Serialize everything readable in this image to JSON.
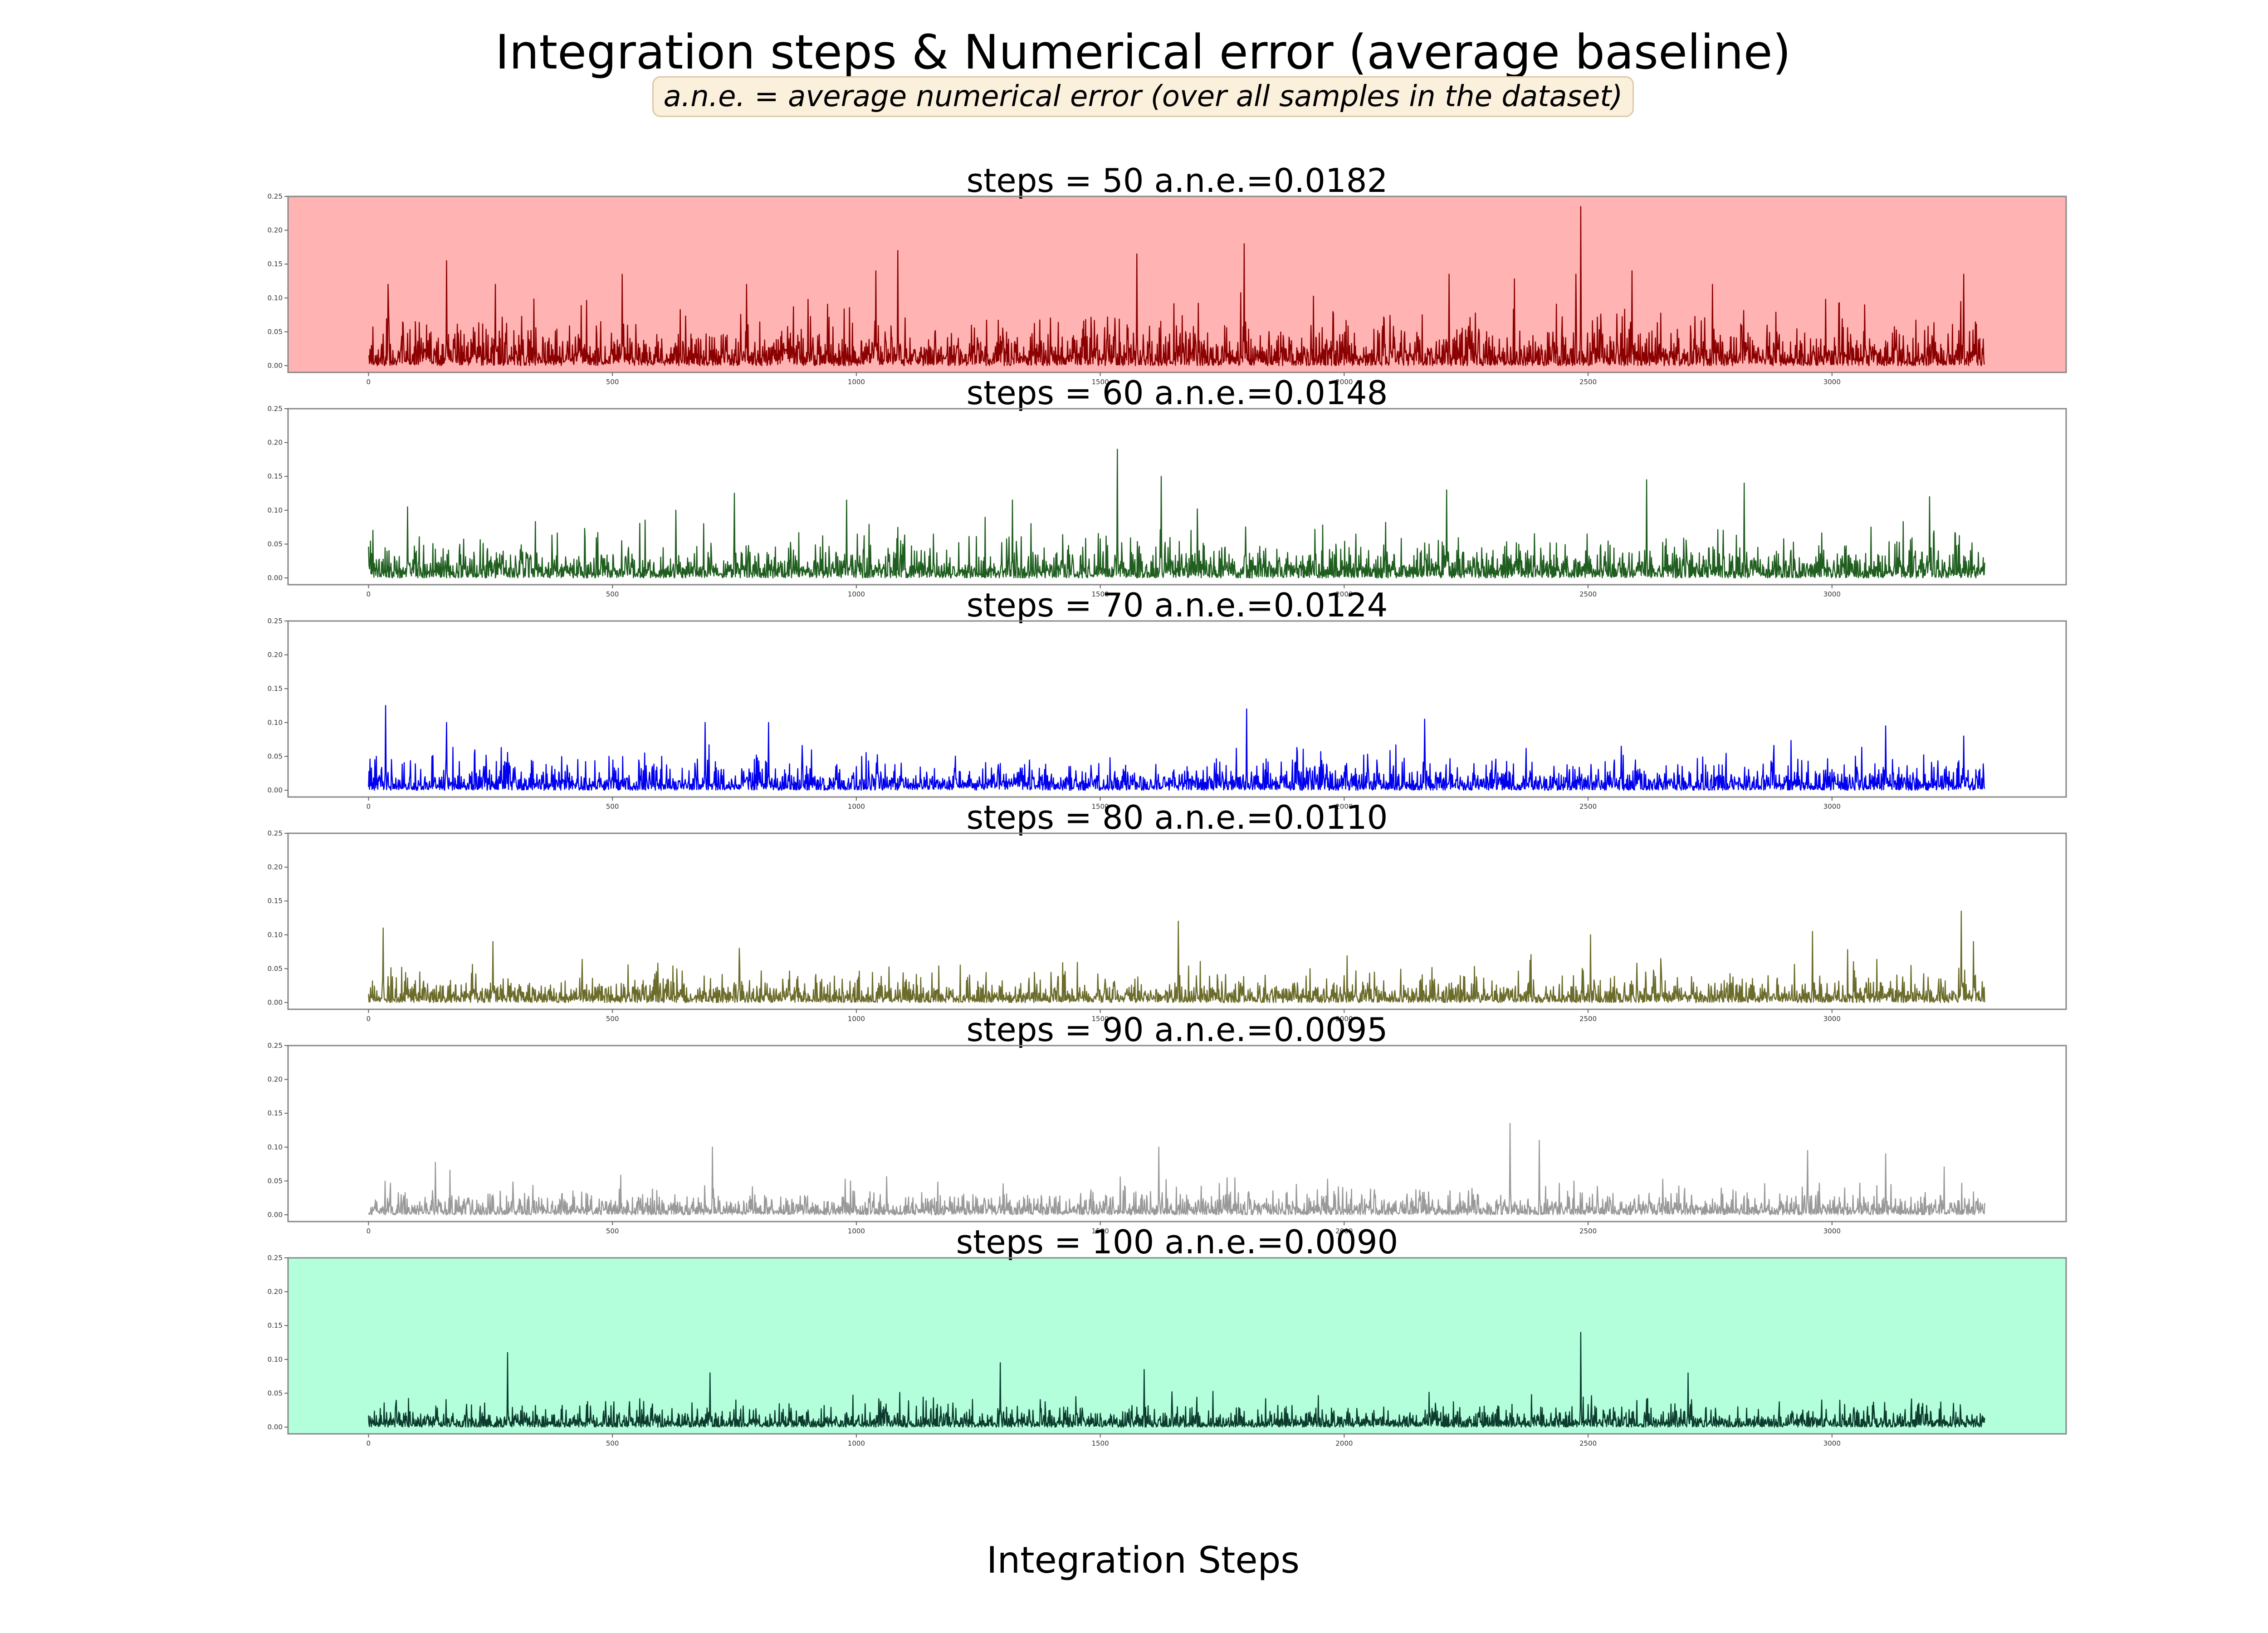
{
  "figure": {
    "title": "Integration steps & Numerical error (average baseline)",
    "subtitle": "a.n.e. = average numerical error (over all samples in the dataset)",
    "xlabel": "Integration Steps"
  },
  "chart_data": [
    {
      "type": "line",
      "title": "steps = 50 a.n.e.=0.0182",
      "steps": 50,
      "ane": 0.0182,
      "line_color": "#8b0000",
      "background_color": "#ffb3b3",
      "x_range": [
        0,
        3313
      ],
      "xlim": [
        -165,
        3480
      ],
      "ylim": [
        -0.01,
        0.25
      ],
      "xticks": [
        0,
        500,
        1000,
        1500,
        2000,
        2500,
        3000
      ],
      "yticks": [
        "0.00",
        "0.05",
        "0.10",
        "0.15",
        "0.20",
        "0.25"
      ],
      "mean_level": 0.0182,
      "peaks": [
        {
          "x": 40,
          "y": 0.12
        },
        {
          "x": 160,
          "y": 0.155
        },
        {
          "x": 260,
          "y": 0.12
        },
        {
          "x": 520,
          "y": 0.135
        },
        {
          "x": 775,
          "y": 0.12
        },
        {
          "x": 1040,
          "y": 0.14
        },
        {
          "x": 1085,
          "y": 0.17
        },
        {
          "x": 1575,
          "y": 0.165
        },
        {
          "x": 1795,
          "y": 0.18
        },
        {
          "x": 2215,
          "y": 0.135
        },
        {
          "x": 2475,
          "y": 0.135
        },
        {
          "x": 2485,
          "y": 0.235
        },
        {
          "x": 2590,
          "y": 0.14
        },
        {
          "x": 2755,
          "y": 0.12
        },
        {
          "x": 3270,
          "y": 0.135
        }
      ]
    },
    {
      "type": "line",
      "title": "steps = 60 a.n.e.=0.0148",
      "steps": 60,
      "ane": 0.0148,
      "line_color": "#1f5e1f",
      "background_color": "#ffffff",
      "x_range": [
        0,
        3313
      ],
      "xlim": [
        -165,
        3480
      ],
      "ylim": [
        -0.01,
        0.25
      ],
      "xticks": [
        0,
        500,
        1000,
        1500,
        2000,
        2500,
        3000
      ],
      "yticks": [
        "0.00",
        "0.05",
        "0.10",
        "0.15",
        "0.20",
        "0.25"
      ],
      "mean_level": 0.0148,
      "peaks": [
        {
          "x": 80,
          "y": 0.105
        },
        {
          "x": 630,
          "y": 0.1
        },
        {
          "x": 750,
          "y": 0.125
        },
        {
          "x": 980,
          "y": 0.115
        },
        {
          "x": 1320,
          "y": 0.115
        },
        {
          "x": 1535,
          "y": 0.19
        },
        {
          "x": 1625,
          "y": 0.15
        },
        {
          "x": 2210,
          "y": 0.13
        },
        {
          "x": 2620,
          "y": 0.145
        },
        {
          "x": 2820,
          "y": 0.14
        },
        {
          "x": 3200,
          "y": 0.12
        }
      ]
    },
    {
      "type": "line",
      "title": "steps = 70 a.n.e.=0.0124",
      "steps": 70,
      "ane": 0.0124,
      "line_color": "#0000ee",
      "background_color": "#ffffff",
      "x_range": [
        0,
        3313
      ],
      "xlim": [
        -165,
        3480
      ],
      "ylim": [
        -0.01,
        0.25
      ],
      "xticks": [
        0,
        500,
        1000,
        1500,
        2000,
        2500,
        3000
      ],
      "yticks": [
        "0.00",
        "0.05",
        "0.10",
        "0.15",
        "0.20",
        "0.25"
      ],
      "mean_level": 0.0124,
      "peaks": [
        {
          "x": 35,
          "y": 0.125
        },
        {
          "x": 160,
          "y": 0.1
        },
        {
          "x": 690,
          "y": 0.1
        },
        {
          "x": 820,
          "y": 0.1
        },
        {
          "x": 1800,
          "y": 0.12
        },
        {
          "x": 2165,
          "y": 0.105
        },
        {
          "x": 3110,
          "y": 0.095
        },
        {
          "x": 3270,
          "y": 0.08
        }
      ]
    },
    {
      "type": "line",
      "title": "steps = 80 a.n.e.=0.0110",
      "steps": 80,
      "ane": 0.011,
      "line_color": "#6b6b2a",
      "background_color": "#ffffff",
      "x_range": [
        0,
        3313
      ],
      "xlim": [
        -165,
        3480
      ],
      "ylim": [
        -0.01,
        0.25
      ],
      "xticks": [
        0,
        500,
        1000,
        1500,
        2000,
        2500,
        3000
      ],
      "yticks": [
        "0.00",
        "0.05",
        "0.10",
        "0.15",
        "0.20",
        "0.25"
      ],
      "mean_level": 0.011,
      "peaks": [
        {
          "x": 30,
          "y": 0.11
        },
        {
          "x": 255,
          "y": 0.09
        },
        {
          "x": 760,
          "y": 0.08
        },
        {
          "x": 1660,
          "y": 0.12
        },
        {
          "x": 2505,
          "y": 0.1
        },
        {
          "x": 2960,
          "y": 0.105
        },
        {
          "x": 3265,
          "y": 0.135
        },
        {
          "x": 3290,
          "y": 0.09
        }
      ]
    },
    {
      "type": "line",
      "title": "steps = 90 a.n.e.=0.0095",
      "steps": 90,
      "ane": 0.0095,
      "line_color": "#999999",
      "background_color": "#ffffff",
      "x_range": [
        0,
        3313
      ],
      "xlim": [
        -165,
        3480
      ],
      "ylim": [
        -0.01,
        0.25
      ],
      "xticks": [
        0,
        500,
        1000,
        1500,
        2000,
        2500,
        3000
      ],
      "yticks": [
        "0.00",
        "0.05",
        "0.10",
        "0.15",
        "0.20",
        "0.25"
      ],
      "mean_level": 0.0095,
      "peaks": [
        {
          "x": 705,
          "y": 0.1
        },
        {
          "x": 1620,
          "y": 0.1
        },
        {
          "x": 2340,
          "y": 0.135
        },
        {
          "x": 2400,
          "y": 0.11
        },
        {
          "x": 2950,
          "y": 0.095
        },
        {
          "x": 3110,
          "y": 0.09
        }
      ]
    },
    {
      "type": "line",
      "title": "steps = 100 a.n.e.=0.0090",
      "steps": 100,
      "ane": 0.009,
      "line_color": "#0d3b2e",
      "background_color": "#b3ffdc",
      "x_range": [
        0,
        3313
      ],
      "xlim": [
        -165,
        3480
      ],
      "ylim": [
        -0.01,
        0.25
      ],
      "xticks": [
        0,
        500,
        1000,
        1500,
        2000,
        2500,
        3000
      ],
      "yticks": [
        "0.00",
        "0.05",
        "0.10",
        "0.15",
        "0.20",
        "0.25"
      ],
      "mean_level": 0.009,
      "peaks": [
        {
          "x": 285,
          "y": 0.11
        },
        {
          "x": 700,
          "y": 0.08
        },
        {
          "x": 1295,
          "y": 0.095
        },
        {
          "x": 1590,
          "y": 0.085
        },
        {
          "x": 2485,
          "y": 0.14
        },
        {
          "x": 2705,
          "y": 0.08
        }
      ]
    }
  ]
}
